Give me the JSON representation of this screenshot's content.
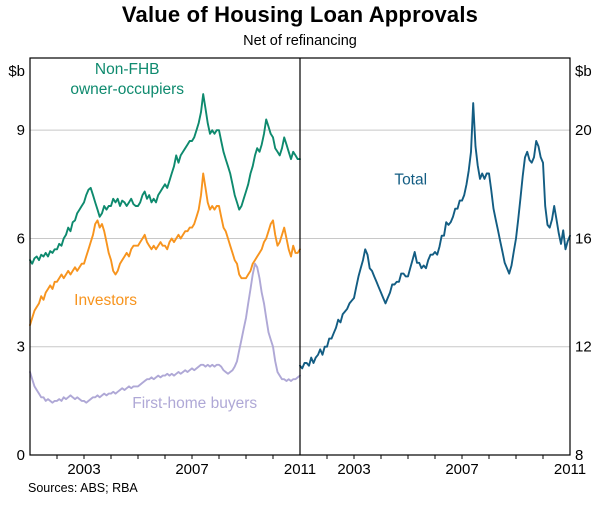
{
  "header": {
    "title": "Value of Housing Loan Approvals",
    "subtitle": "Net of refinancing"
  },
  "footer": {
    "sources": "Sources: ABS; RBA"
  },
  "colors": {
    "grid": "#C8C8C8",
    "frame": "#000000",
    "axis_text": "#000000"
  },
  "chart_data": {
    "type": "line",
    "title": "Value of Housing Loan Approvals",
    "subtitle": "Net of refinancing",
    "x_unit": "year (monthly observations)",
    "x_start": 2001.0,
    "x_step": 0.0833333,
    "grid": true,
    "axes": {
      "left": {
        "unit": "$b",
        "min": 0,
        "max": 11,
        "ticks": [
          0,
          3,
          6,
          9
        ]
      },
      "right": {
        "unit": "$b",
        "min": 8,
        "max": 22.6667,
        "ticks": [
          8,
          12,
          16,
          20
        ]
      },
      "x": {
        "min": 2001,
        "max": 2011,
        "tick_labels": [
          "2003",
          "2007",
          "2011"
        ]
      }
    },
    "panels": [
      {
        "name": "components",
        "y_axis": "left",
        "series": [
          {
            "name": "Non-FHB owner-occupiers",
            "color": "#0E8A6E",
            "values": [
              5.4,
              5.3,
              5.45,
              5.5,
              5.4,
              5.55,
              5.5,
              5.6,
              5.5,
              5.65,
              5.6,
              5.7,
              5.7,
              5.85,
              5.8,
              6.0,
              6.1,
              6.3,
              6.2,
              6.45,
              6.5,
              6.7,
              6.8,
              6.9,
              7.0,
              7.2,
              7.35,
              7.4,
              7.2,
              7.0,
              6.8,
              6.6,
              6.7,
              6.9,
              6.8,
              6.9,
              6.9,
              7.1,
              7.0,
              7.1,
              6.9,
              7.05,
              7.0,
              6.9,
              7.0,
              7.1,
              6.95,
              6.9,
              6.9,
              7.0,
              7.2,
              7.3,
              7.1,
              7.2,
              7.0,
              7.1,
              7.0,
              7.2,
              7.3,
              7.4,
              7.5,
              7.4,
              7.6,
              7.8,
              8.0,
              8.3,
              8.1,
              8.3,
              8.4,
              8.5,
              8.6,
              8.7,
              8.7,
              8.8,
              9.0,
              9.2,
              9.5,
              10.0,
              9.6,
              9.2,
              8.9,
              9.0,
              8.9,
              9.0,
              9.0,
              8.7,
              8.4,
              8.2,
              8.0,
              7.8,
              7.5,
              7.2,
              7.0,
              6.8,
              6.9,
              7.1,
              7.3,
              7.5,
              7.8,
              8.0,
              8.3,
              8.5,
              8.4,
              8.6,
              8.9,
              9.3,
              9.1,
              8.9,
              8.8,
              8.5,
              8.4,
              8.3,
              8.5,
              8.8,
              8.6,
              8.4,
              8.2,
              8.4,
              8.3,
              8.2,
              8.2
            ]
          },
          {
            "name": "Investors",
            "color": "#F7941E",
            "values": [
              3.6,
              3.8,
              4.0,
              4.1,
              4.2,
              4.4,
              4.3,
              4.5,
              4.6,
              4.7,
              4.6,
              4.8,
              4.8,
              4.9,
              5.0,
              4.9,
              5.0,
              5.1,
              5.0,
              5.1,
              5.2,
              5.1,
              5.2,
              5.3,
              5.3,
              5.5,
              5.7,
              5.9,
              6.1,
              6.4,
              6.5,
              6.3,
              6.4,
              6.2,
              5.9,
              5.6,
              5.4,
              5.1,
              5.0,
              5.1,
              5.3,
              5.4,
              5.5,
              5.6,
              5.5,
              5.7,
              5.8,
              5.8,
              5.8,
              5.9,
              6.0,
              6.1,
              5.9,
              5.8,
              5.7,
              5.8,
              5.7,
              5.8,
              5.9,
              5.8,
              5.8,
              5.7,
              5.9,
              6.0,
              5.9,
              6.0,
              6.1,
              6.0,
              6.1,
              6.2,
              6.2,
              6.3,
              6.3,
              6.4,
              6.6,
              6.8,
              7.2,
              7.8,
              7.4,
              7.0,
              6.8,
              6.9,
              6.8,
              6.9,
              6.9,
              6.6,
              6.3,
              6.2,
              6.0,
              5.8,
              5.6,
              5.4,
              5.3,
              5.0,
              4.9,
              4.9,
              4.9,
              5.0,
              5.1,
              5.3,
              5.4,
              5.5,
              5.6,
              5.7,
              5.9,
              6.0,
              6.2,
              6.4,
              6.5,
              6.1,
              5.8,
              5.9,
              6.1,
              6.3,
              6.0,
              5.7,
              5.5,
              5.8,
              5.6,
              5.6,
              5.7
            ]
          },
          {
            "name": "First-home buyers",
            "color": "#AFA8D6",
            "values": [
              2.3,
              2.1,
              1.9,
              1.8,
              1.7,
              1.6,
              1.6,
              1.5,
              1.55,
              1.5,
              1.45,
              1.5,
              1.5,
              1.55,
              1.5,
              1.6,
              1.55,
              1.6,
              1.65,
              1.6,
              1.55,
              1.6,
              1.55,
              1.5,
              1.5,
              1.45,
              1.5,
              1.55,
              1.6,
              1.6,
              1.65,
              1.6,
              1.65,
              1.7,
              1.65,
              1.7,
              1.7,
              1.75,
              1.7,
              1.75,
              1.8,
              1.85,
              1.8,
              1.85,
              1.9,
              1.85,
              1.9,
              1.9,
              1.9,
              1.95,
              2.0,
              2.05,
              2.1,
              2.1,
              2.15,
              2.1,
              2.15,
              2.2,
              2.15,
              2.2,
              2.2,
              2.25,
              2.2,
              2.25,
              2.2,
              2.25,
              2.3,
              2.25,
              2.3,
              2.35,
              2.3,
              2.35,
              2.4,
              2.35,
              2.4,
              2.45,
              2.5,
              2.5,
              2.45,
              2.5,
              2.45,
              2.5,
              2.45,
              2.5,
              2.5,
              2.45,
              2.35,
              2.3,
              2.25,
              2.3,
              2.35,
              2.45,
              2.6,
              2.9,
              3.2,
              3.5,
              3.8,
              4.2,
              4.6,
              5.0,
              5.3,
              5.2,
              4.9,
              4.5,
              4.2,
              3.8,
              3.4,
              3.2,
              3.0,
              2.6,
              2.3,
              2.2,
              2.1,
              2.1,
              2.05,
              2.1,
              2.05,
              2.1,
              2.1,
              2.15,
              2.2
            ]
          }
        ]
      },
      {
        "name": "total",
        "y_axis": "right",
        "series": [
          {
            "name": "Total",
            "color": "#135D83",
            "values": [
              11.3,
              11.2,
              11.4,
              11.4,
              11.3,
              11.6,
              11.4,
              11.6,
              11.7,
              11.9,
              11.7,
              12.0,
              12.0,
              12.3,
              12.3,
              12.5,
              12.7,
              13.0,
              12.9,
              13.2,
              13.3,
              13.4,
              13.6,
              13.7,
              13.8,
              14.2,
              14.6,
              14.9,
              15.2,
              15.6,
              15.4,
              14.9,
              14.8,
              14.6,
              14.4,
              14.2,
              14.0,
              13.8,
              13.6,
              13.8,
              14.0,
              14.3,
              14.3,
              14.4,
              14.4,
              14.7,
              14.7,
              14.6,
              14.6,
              14.9,
              15.2,
              15.5,
              15.1,
              15.1,
              14.9,
              15.0,
              14.9,
              15.2,
              15.4,
              15.4,
              15.5,
              15.4,
              15.7,
              16.1,
              16.1,
              16.6,
              16.5,
              16.6,
              16.8,
              17.1,
              17.1,
              17.4,
              17.4,
              17.6,
              18.0,
              18.5,
              19.2,
              21.0,
              19.4,
              18.7,
              18.2,
              18.4,
              18.2,
              18.4,
              18.4,
              17.8,
              17.1,
              16.7,
              16.3,
              15.9,
              15.5,
              15.1,
              14.9,
              14.7,
              15.0,
              15.5,
              16.0,
              16.7,
              17.5,
              18.3,
              19.0,
              19.2,
              18.9,
              18.8,
              19.0,
              19.6,
              19.4,
              19.0,
              18.8,
              17.2,
              16.5,
              16.4,
              16.7,
              17.2,
              16.7,
              16.2,
              15.8,
              16.3,
              15.6,
              15.9,
              16.1
            ]
          }
        ]
      }
    ],
    "annotations": [
      {
        "panel": 0,
        "year": 2004.6,
        "value": 10.55,
        "lines": [
          "Non-FHB",
          "owner-occupiers"
        ],
        "color": "#0E8A6E"
      },
      {
        "panel": 0,
        "year": 2003.8,
        "value": 4.15,
        "lines": [
          "Investors"
        ],
        "color": "#F7941E"
      },
      {
        "panel": 0,
        "year": 2007.1,
        "value": 1.3,
        "lines": [
          "First-home buyers"
        ],
        "color": "#AFA8D6"
      },
      {
        "panel": 1,
        "year": 2005.1,
        "value": 18.0,
        "lines": [
          "Total"
        ],
        "color": "#135D83"
      }
    ]
  }
}
